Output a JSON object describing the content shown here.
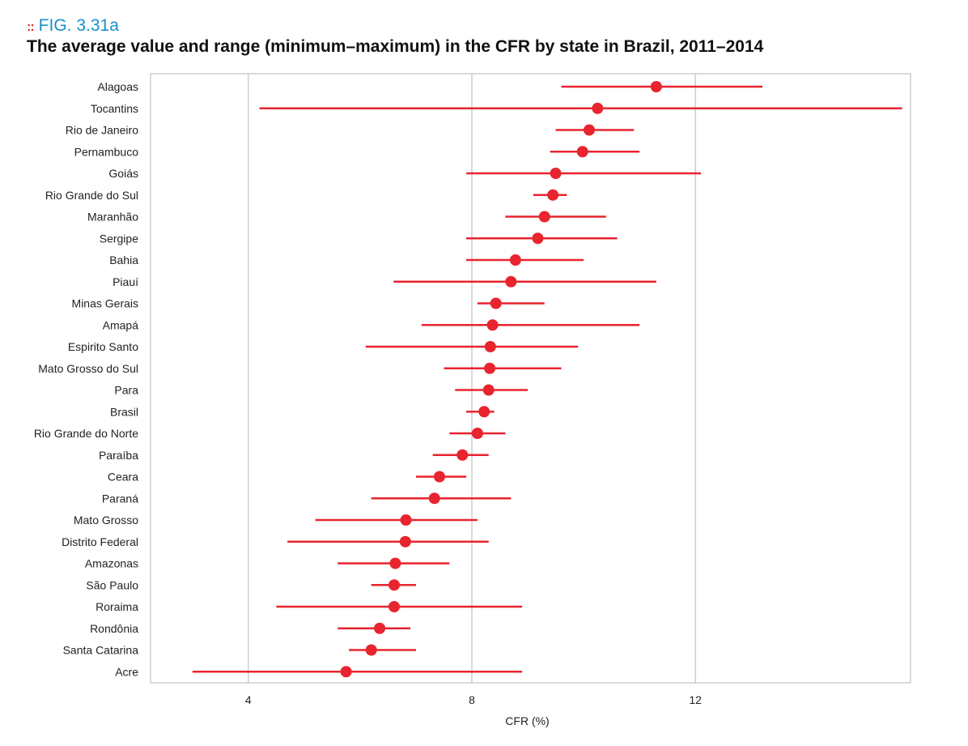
{
  "figure": {
    "mark": "::",
    "label": "FIG. 3.31a",
    "title": "The average value and range (minimum–maximum) in the CFR by state in Brazil, 2011–2014"
  },
  "colors": {
    "series": "#e8242e",
    "grid": "#b5b5b5",
    "frame": "#b5b5b5",
    "text": "#222222",
    "label": "#1a8fce"
  },
  "chart_data": {
    "type": "scatter",
    "subtype": "dot-with-range",
    "title": "The average value and range (minimum–maximum) in the CFR by state in Brazil, 2011–2014",
    "xlabel": "CFR (%)",
    "ylabel": "",
    "xlim": [
      2.25,
      15.85
    ],
    "xticks": [
      4,
      8,
      12
    ],
    "grid": "vertical at ticks",
    "categories": [
      "Alagoas",
      "Tocantins",
      "Rio de Janeiro",
      "Pernambuco",
      "Goiás",
      "Rio Grande do Sul",
      "Maranhão",
      "Sergipe",
      "Bahia",
      "Piauí",
      "Minas Gerais",
      "Amapá",
      "Espirito Santo",
      "Mato Grosso do Sul",
      "Para",
      "Brasil",
      "Rio Grande do Norte",
      "Paraíba",
      "Ceara",
      "Paraná",
      "Mato Grosso",
      "Distrito Federal",
      "Amazonas",
      "São Paulo",
      "Roraima",
      "Rondônia",
      "Santa Catarina",
      "Acre"
    ],
    "mean": [
      11.3,
      10.25,
      10.1,
      9.98,
      9.5,
      9.45,
      9.3,
      9.18,
      8.78,
      8.7,
      8.43,
      8.37,
      8.33,
      8.32,
      8.3,
      8.22,
      8.1,
      7.83,
      7.42,
      7.33,
      6.82,
      6.81,
      6.63,
      6.61,
      6.61,
      6.35,
      6.2,
      5.75
    ],
    "min": [
      9.6,
      4.2,
      9.5,
      9.4,
      7.9,
      9.1,
      8.6,
      7.9,
      7.9,
      6.6,
      8.1,
      7.1,
      6.1,
      7.5,
      7.7,
      7.9,
      7.6,
      7.3,
      7.0,
      6.2,
      5.2,
      4.7,
      5.6,
      6.2,
      4.5,
      5.6,
      5.8,
      3.0
    ],
    "max": [
      13.2,
      15.7,
      10.9,
      11.0,
      12.1,
      9.7,
      10.4,
      10.6,
      10.0,
      11.3,
      9.3,
      11.0,
      9.9,
      9.6,
      9.0,
      8.4,
      8.6,
      8.3,
      7.9,
      8.7,
      8.1,
      8.3,
      7.6,
      7.0,
      8.9,
      6.9,
      7.0,
      8.9
    ]
  }
}
